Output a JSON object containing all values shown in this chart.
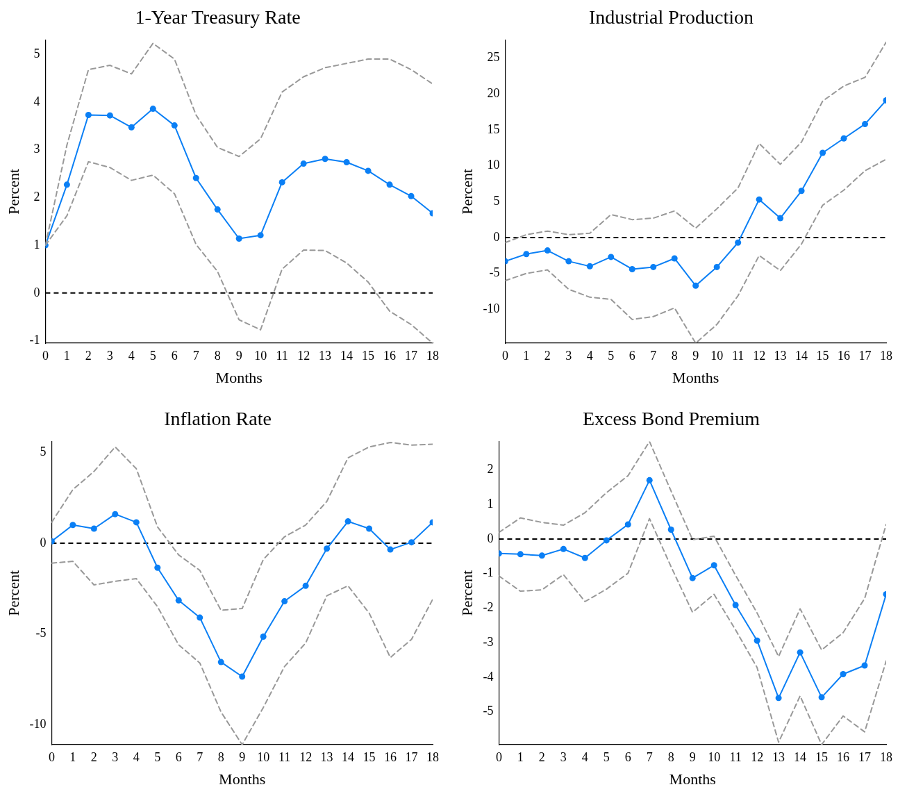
{
  "chart_data": [
    {
      "type": "line",
      "title": "1-Year Treasury Rate",
      "xlabel": "Months",
      "ylabel": "Percent",
      "x": [
        0,
        1,
        2,
        3,
        4,
        5,
        6,
        7,
        8,
        9,
        10,
        11,
        12,
        13,
        14,
        15,
        16,
        17,
        18
      ],
      "xlim": [
        0,
        18
      ],
      "xticks": [
        0,
        1,
        2,
        3,
        4,
        5,
        6,
        7,
        8,
        9,
        10,
        11,
        12,
        13,
        14,
        15,
        16,
        17,
        18
      ],
      "ylim": [
        -1.05,
        5.3
      ],
      "yticks": [
        -1,
        0,
        1,
        2,
        3,
        4,
        5
      ],
      "grid": false,
      "legend": false,
      "ref_lines": [
        {
          "axis": "y",
          "value": 0,
          "color": "#000000",
          "line_style": "dashed"
        }
      ],
      "series": [
        {
          "color": "#999999",
          "line_style": "dashed",
          "marker": "none",
          "values": [
            1.0,
            3.1,
            4.68,
            4.77,
            4.59,
            5.23,
            4.9,
            3.73,
            3.05,
            2.86,
            3.23,
            4.21,
            4.53,
            4.72,
            4.81,
            4.9,
            4.9,
            4.68,
            4.38
          ]
        },
        {
          "color": "#999999",
          "line_style": "dashed",
          "marker": "none",
          "values": [
            1.0,
            1.62,
            2.75,
            2.63,
            2.36,
            2.47,
            2.08,
            1.02,
            0.45,
            -0.56,
            -0.77,
            0.5,
            0.9,
            0.89,
            0.63,
            0.23,
            -0.38,
            -0.66,
            -1.05
          ]
        },
        {
          "color": "#0a7ff5",
          "line_style": "solid",
          "marker": "circle",
          "values": [
            1.0,
            2.27,
            3.73,
            3.72,
            3.47,
            3.86,
            3.51,
            2.41,
            1.75,
            1.14,
            1.21,
            2.32,
            2.71,
            2.81,
            2.74,
            2.56,
            2.27,
            2.03,
            1.67
          ]
        }
      ]
    },
    {
      "type": "line",
      "title": "Industrial Production",
      "xlabel": "Months",
      "ylabel": "Percent",
      "x": [
        0,
        1,
        2,
        3,
        4,
        5,
        6,
        7,
        8,
        9,
        10,
        11,
        12,
        13,
        14,
        15,
        16,
        17,
        18
      ],
      "xlim": [
        0,
        18
      ],
      "xticks": [
        0,
        1,
        2,
        3,
        4,
        5,
        6,
        7,
        8,
        9,
        10,
        11,
        12,
        13,
        14,
        15,
        16,
        17,
        18
      ],
      "ylim": [
        -14.7,
        27.5
      ],
      "yticks": [
        -10,
        -5,
        0,
        5,
        10,
        15,
        20,
        25
      ],
      "grid": false,
      "legend": false,
      "ref_lines": [
        {
          "axis": "y",
          "value": 0,
          "color": "#000000",
          "line_style": "dashed"
        }
      ],
      "series": [
        {
          "color": "#999999",
          "line_style": "dashed",
          "marker": "none",
          "values": [
            -0.7,
            0.4,
            0.9,
            0.4,
            0.6,
            3.2,
            2.5,
            2.7,
            3.7,
            1.3,
            4.0,
            6.9,
            13.1,
            10.2,
            13.3,
            19.0,
            21.1,
            22.3,
            27.2
          ]
        },
        {
          "color": "#999999",
          "line_style": "dashed",
          "marker": "none",
          "values": [
            -6.0,
            -5.0,
            -4.5,
            -7.2,
            -8.3,
            -8.6,
            -11.4,
            -11.0,
            -9.8,
            -14.7,
            -12.1,
            -8.1,
            -2.5,
            -4.6,
            -0.9,
            4.5,
            6.6,
            9.3,
            10.9
          ]
        },
        {
          "color": "#0a7ff5",
          "line_style": "solid",
          "marker": "circle",
          "values": [
            -3.3,
            -2.3,
            -1.8,
            -3.3,
            -4.0,
            -2.7,
            -4.4,
            -4.1,
            -2.9,
            -6.7,
            -4.1,
            -0.7,
            5.3,
            2.7,
            6.5,
            11.8,
            13.8,
            15.8,
            19.1
          ]
        }
      ]
    },
    {
      "type": "line",
      "title": "Inflation Rate",
      "xlabel": "Months",
      "ylabel": "Percent",
      "x": [
        0,
        1,
        2,
        3,
        4,
        5,
        6,
        7,
        8,
        9,
        10,
        11,
        12,
        13,
        14,
        15,
        16,
        17,
        18
      ],
      "xlim": [
        0,
        18
      ],
      "xticks": [
        0,
        1,
        2,
        3,
        4,
        5,
        6,
        7,
        8,
        9,
        10,
        11,
        12,
        13,
        14,
        15,
        16,
        17,
        18
      ],
      "ylim": [
        -11.1,
        5.6
      ],
      "yticks": [
        -10,
        -5,
        0,
        5
      ],
      "grid": false,
      "legend": false,
      "ref_lines": [
        {
          "axis": "y",
          "value": 0,
          "color": "#000000",
          "line_style": "dashed"
        }
      ],
      "series": [
        {
          "color": "#999999",
          "line_style": "dashed",
          "marker": "none",
          "values": [
            1.15,
            2.95,
            3.95,
            5.3,
            4.1,
            0.9,
            -0.65,
            -1.5,
            -3.7,
            -3.6,
            -0.9,
            0.35,
            1.0,
            2.3,
            4.7,
            5.3,
            5.55,
            5.4,
            5.45
          ]
        },
        {
          "color": "#999999",
          "line_style": "dashed",
          "marker": "none",
          "values": [
            -1.1,
            -1.0,
            -2.3,
            -2.1,
            -1.95,
            -3.5,
            -5.6,
            -6.6,
            -9.3,
            -11.1,
            -9.05,
            -6.8,
            -5.5,
            -2.9,
            -2.35,
            -3.85,
            -6.3,
            -5.3,
            -3.1
          ]
        },
        {
          "color": "#0a7ff5",
          "line_style": "solid",
          "marker": "circle",
          "values": [
            0.1,
            1.0,
            0.8,
            1.6,
            1.15,
            -1.35,
            -3.15,
            -4.1,
            -6.55,
            -7.35,
            -5.15,
            -3.2,
            -2.35,
            -0.3,
            1.2,
            0.8,
            -0.35,
            0.05,
            1.15
          ]
        }
      ]
    },
    {
      "type": "line",
      "title": "Excess Bond Premium",
      "xlabel": "Months",
      "ylabel": "Percent",
      "x": [
        0,
        1,
        2,
        3,
        4,
        5,
        6,
        7,
        8,
        9,
        10,
        11,
        12,
        13,
        14,
        15,
        16,
        17,
        18
      ],
      "xlim": [
        0,
        18
      ],
      "xticks": [
        0,
        1,
        2,
        3,
        4,
        5,
        6,
        7,
        8,
        9,
        10,
        11,
        12,
        13,
        14,
        15,
        16,
        17,
        18
      ],
      "ylim": [
        -5.95,
        2.82
      ],
      "yticks": [
        -5,
        -4,
        -3,
        -2,
        -1,
        0,
        1,
        2
      ],
      "grid": false,
      "legend": false,
      "ref_lines": [
        {
          "axis": "y",
          "value": 0,
          "color": "#000000",
          "line_style": "dashed"
        }
      ],
      "series": [
        {
          "color": "#999999",
          "line_style": "dashed",
          "marker": "none",
          "values": [
            0.19,
            0.61,
            0.48,
            0.4,
            0.76,
            1.34,
            1.83,
            2.82,
            1.39,
            -0.02,
            0.08,
            -1.05,
            -2.14,
            -3.4,
            -2.02,
            -3.21,
            -2.71,
            -1.72,
            0.42
          ]
        },
        {
          "color": "#999999",
          "line_style": "dashed",
          "marker": "none",
          "values": [
            -1.07,
            -1.51,
            -1.47,
            -1.03,
            -1.81,
            -1.45,
            -0.99,
            0.59,
            -0.8,
            -2.12,
            -1.6,
            -2.63,
            -3.72,
            -5.88,
            -4.54,
            -5.95,
            -5.12,
            -5.58,
            -3.53
          ]
        },
        {
          "color": "#0a7ff5",
          "line_style": "solid",
          "marker": "circle",
          "values": [
            -0.42,
            -0.44,
            -0.48,
            -0.29,
            -0.55,
            -0.04,
            0.42,
            1.7,
            0.27,
            -1.13,
            -0.76,
            -1.91,
            -2.94,
            -4.6,
            -3.28,
            -4.58,
            -3.91,
            -3.66,
            -1.6
          ]
        }
      ]
    }
  ]
}
